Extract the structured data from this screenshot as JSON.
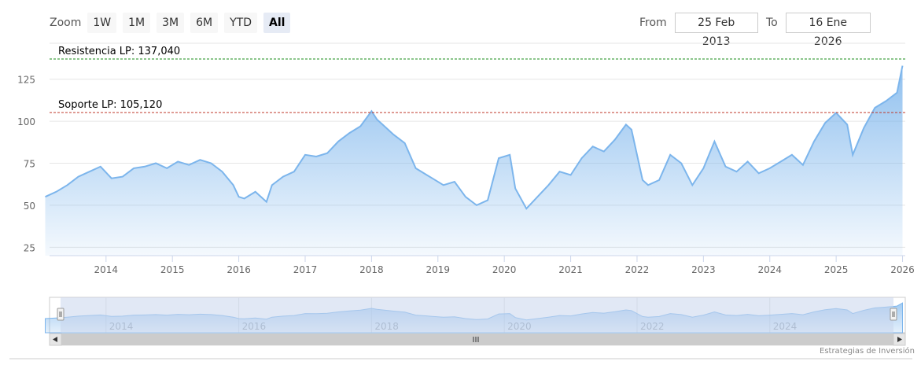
{
  "toolbar": {
    "zoom_label": "Zoom",
    "buttons": [
      {
        "label": "1W",
        "active": false
      },
      {
        "label": "1M",
        "active": false
      },
      {
        "label": "3M",
        "active": false
      },
      {
        "label": "6M",
        "active": false
      },
      {
        "label": "YTD",
        "active": false
      },
      {
        "label": "All",
        "active": true
      }
    ],
    "from_label": "From",
    "from_value": "25 Feb 2013",
    "to_label": "To",
    "to_value": "16 Ene 2026"
  },
  "credit": "Estrategias de Inversión",
  "colors": {
    "line": "#7cb5ec",
    "resistance": "#1a8c1a",
    "support": "#c0392b",
    "navigator_mask": "#c9d6ec"
  },
  "chart_data": {
    "type": "area",
    "x_start": "2013-02-25",
    "x_end": "2026-01-16",
    "ylim": [
      20,
      145
    ],
    "yticks": [
      "25",
      "50",
      "75",
      "100",
      "125"
    ],
    "xticks": [
      "2014",
      "2015",
      "2016",
      "2017",
      "2018",
      "2019",
      "2020",
      "2021",
      "2022",
      "2023",
      "2024",
      "2025",
      "2026"
    ],
    "navigator_ticks": [
      "2014",
      "2016",
      "2018",
      "2020",
      "2022",
      "2024"
    ],
    "annotations": [
      {
        "label": "Resistencia LP: 137,040",
        "value": 137.04,
        "kind": "resistance"
      },
      {
        "label": "Soporte LP: 105,120",
        "value": 105.12,
        "kind": "support"
      }
    ],
    "series": [
      {
        "x": [
          "2013-02",
          "2013-04",
          "2013-06",
          "2013-08",
          "2013-10",
          "2013-12",
          "2014-02",
          "2014-04",
          "2014-06",
          "2014-08",
          "2014-10",
          "2014-12",
          "2015-02",
          "2015-04",
          "2015-06",
          "2015-08",
          "2015-10",
          "2015-12",
          "2016-01",
          "2016-02",
          "2016-04",
          "2016-06",
          "2016-07",
          "2016-09",
          "2016-11",
          "2017-01",
          "2017-03",
          "2017-05",
          "2017-07",
          "2017-09",
          "2017-11",
          "2018-01",
          "2018-02",
          "2018-03",
          "2018-05",
          "2018-07",
          "2018-09",
          "2018-11",
          "2018-12",
          "2019-02",
          "2019-04",
          "2019-06",
          "2019-08",
          "2019-10",
          "2019-12",
          "2020-02",
          "2020-03",
          "2020-05",
          "2020-07",
          "2020-09",
          "2020-11",
          "2021-01",
          "2021-03",
          "2021-05",
          "2021-07",
          "2021-09",
          "2021-11",
          "2021-12",
          "2022-02",
          "2022-03",
          "2022-05",
          "2022-07",
          "2022-09",
          "2022-11",
          "2023-01",
          "2023-03",
          "2023-05",
          "2023-07",
          "2023-09",
          "2023-11",
          "2024-01",
          "2024-03",
          "2024-05",
          "2024-07",
          "2024-09",
          "2024-11",
          "2025-01",
          "2025-03",
          "2025-04",
          "2025-06",
          "2025-08",
          "2025-10",
          "2025-12",
          "2026-01"
        ],
        "values": [
          55,
          58,
          62,
          67,
          70,
          73,
          66,
          67,
          72,
          73,
          75,
          72,
          76,
          74,
          77,
          75,
          70,
          62,
          55,
          54,
          58,
          52,
          62,
          67,
          70,
          80,
          79,
          81,
          88,
          93,
          97,
          106,
          101,
          98,
          92,
          87,
          72,
          68,
          66,
          62,
          64,
          55,
          50,
          53,
          78,
          80,
          60,
          48,
          55,
          62,
          70,
          68,
          78,
          85,
          82,
          89,
          98,
          95,
          65,
          62,
          65,
          80,
          75,
          62,
          72,
          88,
          73,
          70,
          76,
          69,
          72,
          76,
          80,
          74,
          88,
          99,
          105,
          98,
          80,
          96,
          108,
          112,
          117,
          133
        ]
      }
    ]
  }
}
